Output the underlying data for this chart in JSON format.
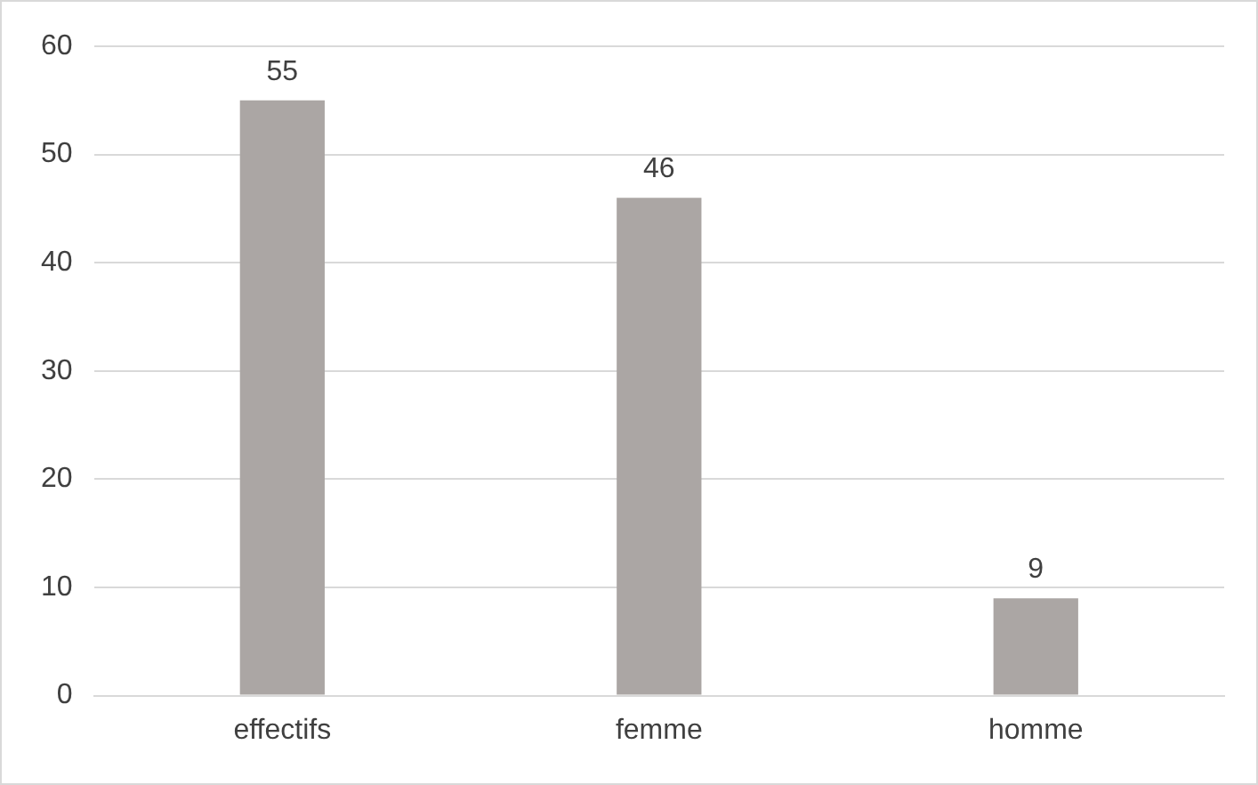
{
  "chart_data": {
    "type": "bar",
    "categories": [
      "effectifs",
      "femme",
      "homme"
    ],
    "values": [
      55,
      46,
      9
    ],
    "color": "#aba6a4",
    "ylim": [
      0,
      60
    ],
    "yticks": [
      0,
      10,
      20,
      30,
      40,
      50,
      60
    ],
    "grid": "y",
    "data_labels": true,
    "legend": false
  }
}
